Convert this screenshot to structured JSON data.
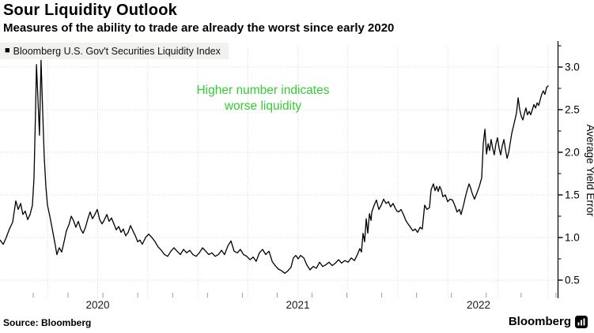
{
  "header": {
    "title": "Sour Liquidity Outlook",
    "subtitle": "Measures of the ability to trade are already the worst since early 2020"
  },
  "legend": {
    "marker": "■",
    "label": "Bloomberg U.S. Gov't Securities Liquidity Index"
  },
  "annotation": {
    "line1": "Higher number indicates",
    "line2": "worse liquidity",
    "color": "#33cc33"
  },
  "footer": {
    "source": "Source: Bloomberg",
    "brand": "Bloomberg"
  },
  "colors": {
    "line": "#000000",
    "grid": "#d9d9d9",
    "axis": "#000000",
    "x_tick": "#999999",
    "annotation_green": "#33cc33",
    "legend_bg": "#f1f1f0"
  },
  "chart_data": {
    "type": "line",
    "series_name": "Bloomberg U.S. Gov't Securities Liquidity Index",
    "grid": "dotted",
    "x_axis": {
      "unit": "year",
      "label_years": [
        "2020",
        "2021",
        "2022"
      ],
      "range_years": [
        2020.01,
        2022.76
      ]
    },
    "y_axis": {
      "title": "Average Yield Error",
      "side": "right",
      "ticks": [
        0.5,
        1.0,
        1.5,
        2.0,
        2.5,
        3.0
      ],
      "tick_labels": [
        "0.5",
        "1.0",
        "1.5",
        "2.0",
        "2.5",
        "3.0"
      ],
      "range": [
        0.45,
        3.3
      ]
    },
    "points": [
      [
        2020.012,
        0.97
      ],
      [
        2020.028,
        0.92
      ],
      [
        2020.043,
        1.0
      ],
      [
        2020.059,
        1.1
      ],
      [
        2020.075,
        1.18
      ],
      [
        2020.091,
        1.43
      ],
      [
        2020.103,
        1.33
      ],
      [
        2020.115,
        1.4
      ],
      [
        2020.126,
        1.27
      ],
      [
        2020.138,
        1.31
      ],
      [
        2020.15,
        1.21
      ],
      [
        2020.162,
        1.27
      ],
      [
        2020.174,
        1.38
      ],
      [
        2020.182,
        1.7
      ],
      [
        2020.19,
        2.55
      ],
      [
        2020.194,
        3.03
      ],
      [
        2020.202,
        2.6
      ],
      [
        2020.209,
        2.2
      ],
      [
        2020.217,
        3.08
      ],
      [
        2020.225,
        2.5
      ],
      [
        2020.233,
        1.95
      ],
      [
        2020.241,
        1.6
      ],
      [
        2020.249,
        1.38
      ],
      [
        2020.261,
        1.25
      ],
      [
        2020.273,
        1.1
      ],
      [
        2020.285,
        0.95
      ],
      [
        2020.296,
        0.8
      ],
      [
        2020.308,
        0.88
      ],
      [
        2020.32,
        0.83
      ],
      [
        2020.332,
        0.95
      ],
      [
        2020.344,
        1.08
      ],
      [
        2020.356,
        1.15
      ],
      [
        2020.368,
        1.25
      ],
      [
        2020.379,
        1.2
      ],
      [
        2020.391,
        1.12
      ],
      [
        2020.403,
        1.19
      ],
      [
        2020.415,
        1.1
      ],
      [
        2020.427,
        1.05
      ],
      [
        2020.439,
        1.12
      ],
      [
        2020.451,
        1.22
      ],
      [
        2020.462,
        1.3
      ],
      [
        2020.474,
        1.22
      ],
      [
        2020.486,
        1.27
      ],
      [
        2020.498,
        1.33
      ],
      [
        2020.51,
        1.21
      ],
      [
        2020.522,
        1.16
      ],
      [
        2020.534,
        1.21
      ],
      [
        2020.546,
        1.27
      ],
      [
        2020.557,
        1.19
      ],
      [
        2020.569,
        1.23
      ],
      [
        2020.581,
        1.16
      ],
      [
        2020.593,
        1.09
      ],
      [
        2020.605,
        1.13
      ],
      [
        2020.617,
        1.06
      ],
      [
        2020.628,
        1.1
      ],
      [
        2020.64,
        1.02
      ],
      [
        2020.652,
        1.06
      ],
      [
        2020.664,
        1.14
      ],
      [
        2020.676,
        1.08
      ],
      [
        2020.688,
        1.02
      ],
      [
        2020.7,
        0.95
      ],
      [
        2020.711,
        0.97
      ],
      [
        2020.723,
        0.92
      ],
      [
        2020.739,
        1.0
      ],
      [
        2020.755,
        1.04
      ],
      [
        2020.771,
        1.0
      ],
      [
        2020.787,
        0.95
      ],
      [
        2020.802,
        0.89
      ],
      [
        2020.818,
        0.85
      ],
      [
        2020.834,
        0.8
      ],
      [
        2020.85,
        0.78
      ],
      [
        2020.866,
        0.84
      ],
      [
        2020.881,
        0.88
      ],
      [
        2020.897,
        0.84
      ],
      [
        2020.913,
        0.8
      ],
      [
        2020.929,
        0.86
      ],
      [
        2020.945,
        0.82
      ],
      [
        2020.96,
        0.85
      ],
      [
        2020.976,
        0.8
      ],
      [
        2020.992,
        0.78
      ],
      [
        2021.008,
        0.82
      ],
      [
        2021.024,
        0.88
      ],
      [
        2021.04,
        0.84
      ],
      [
        2021.055,
        0.8
      ],
      [
        2021.071,
        0.82
      ],
      [
        2021.087,
        0.78
      ],
      [
        2021.103,
        0.8
      ],
      [
        2021.119,
        0.85
      ],
      [
        2021.134,
        0.8
      ],
      [
        2021.15,
        0.9
      ],
      [
        2021.166,
        0.96
      ],
      [
        2021.182,
        0.84
      ],
      [
        2021.198,
        0.82
      ],
      [
        2021.213,
        0.86
      ],
      [
        2021.229,
        0.8
      ],
      [
        2021.245,
        0.78
      ],
      [
        2021.261,
        0.74
      ],
      [
        2021.277,
        0.77
      ],
      [
        2021.292,
        0.72
      ],
      [
        2021.308,
        0.82
      ],
      [
        2021.324,
        0.86
      ],
      [
        2021.34,
        0.8
      ],
      [
        2021.356,
        0.84
      ],
      [
        2021.372,
        0.72
      ],
      [
        2021.387,
        0.67
      ],
      [
        2021.403,
        0.63
      ],
      [
        2021.419,
        0.61
      ],
      [
        2021.435,
        0.58
      ],
      [
        2021.451,
        0.61
      ],
      [
        2021.466,
        0.65
      ],
      [
        2021.478,
        0.76
      ],
      [
        2021.49,
        0.79
      ],
      [
        2021.502,
        0.75
      ],
      [
        2021.514,
        0.79
      ],
      [
        2021.53,
        0.76
      ],
      [
        2021.545,
        0.68
      ],
      [
        2021.561,
        0.62
      ],
      [
        2021.577,
        0.66
      ],
      [
        2021.593,
        0.64
      ],
      [
        2021.609,
        0.71
      ],
      [
        2021.624,
        0.66
      ],
      [
        2021.64,
        0.68
      ],
      [
        2021.656,
        0.71
      ],
      [
        2021.672,
        0.67
      ],
      [
        2021.688,
        0.7
      ],
      [
        2021.704,
        0.74
      ],
      [
        2021.719,
        0.7
      ],
      [
        2021.735,
        0.73
      ],
      [
        2021.751,
        0.71
      ],
      [
        2021.767,
        0.76
      ],
      [
        2021.783,
        0.73
      ],
      [
        2021.798,
        0.8
      ],
      [
        2021.81,
        0.87
      ],
      [
        2021.818,
        0.83
      ],
      [
        2021.826,
        1.05
      ],
      [
        2021.834,
        0.95
      ],
      [
        2021.842,
        1.22
      ],
      [
        2021.85,
        1.05
      ],
      [
        2021.858,
        1.28
      ],
      [
        2021.866,
        1.2
      ],
      [
        2021.87,
        1.3
      ],
      [
        2021.882,
        1.38
      ],
      [
        2021.893,
        1.44
      ],
      [
        2021.905,
        1.33
      ],
      [
        2021.917,
        1.38
      ],
      [
        2021.929,
        1.45
      ],
      [
        2021.941,
        1.4
      ],
      [
        2021.953,
        1.42
      ],
      [
        2021.964,
        1.36
      ],
      [
        2021.976,
        1.4
      ],
      [
        2021.988,
        1.34
      ],
      [
        2021.996,
        1.31
      ],
      [
        2022.004,
        1.3
      ],
      [
        2022.016,
        1.33
      ],
      [
        2022.028,
        1.27
      ],
      [
        2022.04,
        1.2
      ],
      [
        2022.051,
        1.16
      ],
      [
        2022.063,
        1.12
      ],
      [
        2022.075,
        1.08
      ],
      [
        2022.087,
        1.1
      ],
      [
        2022.099,
        1.06
      ],
      [
        2022.111,
        1.12
      ],
      [
        2022.122,
        1.1
      ],
      [
        2022.134,
        1.38
      ],
      [
        2022.146,
        1.33
      ],
      [
        2022.158,
        1.35
      ],
      [
        2022.166,
        1.56
      ],
      [
        2022.178,
        1.63
      ],
      [
        2022.186,
        1.55
      ],
      [
        2022.194,
        1.6
      ],
      [
        2022.202,
        1.54
      ],
      [
        2022.209,
        1.6
      ],
      [
        2022.217,
        1.56
      ],
      [
        2022.225,
        1.48
      ],
      [
        2022.237,
        1.5
      ],
      [
        2022.249,
        1.42
      ],
      [
        2022.261,
        1.45
      ],
      [
        2022.273,
        1.44
      ],
      [
        2022.284,
        1.38
      ],
      [
        2022.296,
        1.3
      ],
      [
        2022.308,
        1.33
      ],
      [
        2022.316,
        1.27
      ],
      [
        2022.328,
        1.38
      ],
      [
        2022.34,
        1.5
      ],
      [
        2022.348,
        1.57
      ],
      [
        2022.356,
        1.63
      ],
      [
        2022.364,
        1.58
      ],
      [
        2022.371,
        1.52
      ],
      [
        2022.383,
        1.45
      ],
      [
        2022.395,
        1.52
      ],
      [
        2022.407,
        1.6
      ],
      [
        2022.419,
        1.7
      ],
      [
        2022.427,
        2.1
      ],
      [
        2022.435,
        2.27
      ],
      [
        2022.443,
        1.98
      ],
      [
        2022.451,
        2.1
      ],
      [
        2022.459,
        2.02
      ],
      [
        2022.466,
        2.15
      ],
      [
        2022.474,
        2.05
      ],
      [
        2022.482,
        1.97
      ],
      [
        2022.49,
        2.1
      ],
      [
        2022.498,
        2.17
      ],
      [
        2022.506,
        2.05
      ],
      [
        2022.514,
        1.97
      ],
      [
        2022.522,
        2.08
      ],
      [
        2022.53,
        2.15
      ],
      [
        2022.538,
        2.03
      ],
      [
        2022.546,
        1.93
      ],
      [
        2022.554,
        2.0
      ],
      [
        2022.561,
        2.1
      ],
      [
        2022.569,
        2.22
      ],
      [
        2022.577,
        2.3
      ],
      [
        2022.585,
        2.38
      ],
      [
        2022.593,
        2.46
      ],
      [
        2022.601,
        2.64
      ],
      [
        2022.609,
        2.5
      ],
      [
        2022.617,
        2.42
      ],
      [
        2022.625,
        2.38
      ],
      [
        2022.633,
        2.46
      ],
      [
        2022.64,
        2.52
      ],
      [
        2022.648,
        2.44
      ],
      [
        2022.656,
        2.48
      ],
      [
        2022.664,
        2.44
      ],
      [
        2022.672,
        2.5
      ],
      [
        2022.68,
        2.56
      ],
      [
        2022.688,
        2.52
      ],
      [
        2022.696,
        2.58
      ],
      [
        2022.704,
        2.55
      ],
      [
        2022.712,
        2.62
      ],
      [
        2022.719,
        2.68
      ],
      [
        2022.727,
        2.72
      ],
      [
        2022.735,
        2.68
      ],
      [
        2022.743,
        2.76
      ],
      [
        2022.751,
        2.78
      ]
    ]
  }
}
